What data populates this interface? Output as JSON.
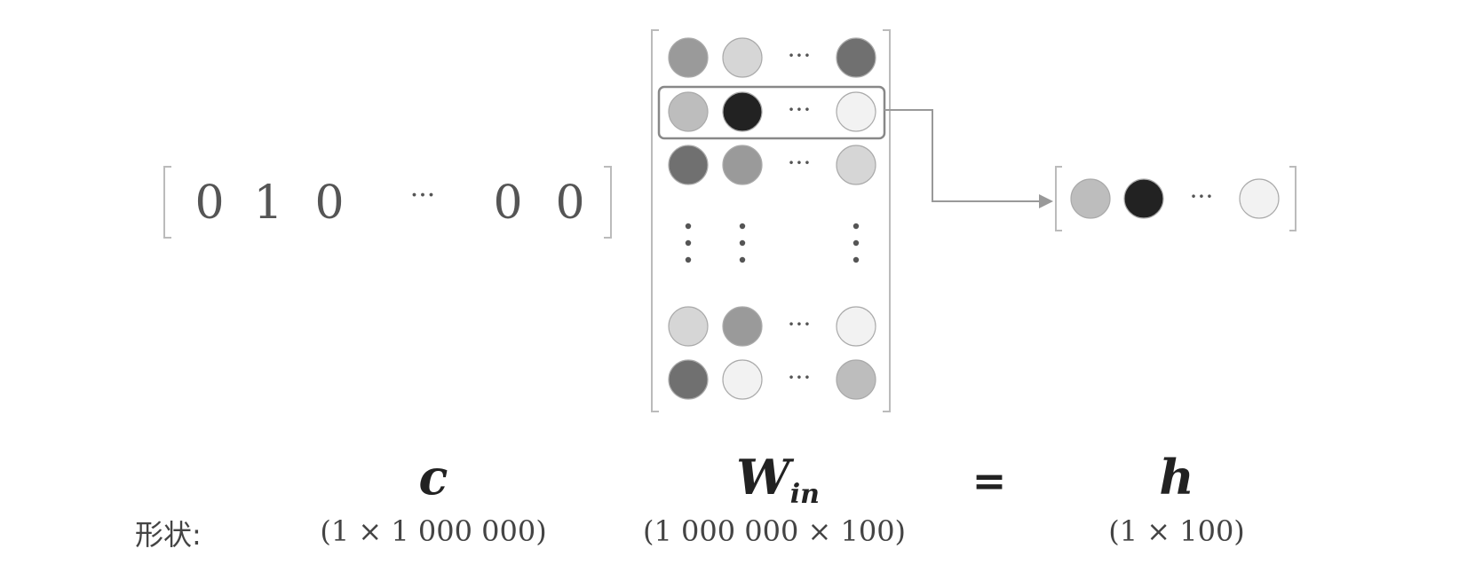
{
  "one_hot_vector": {
    "entries": [
      "0",
      "1",
      "0",
      "···",
      "0",
      "0"
    ]
  },
  "equation": {
    "c": "c",
    "w": "W",
    "w_sub": "in",
    "equals": "=",
    "h": "h"
  },
  "shapes": {
    "label": "形状:",
    "c": "(1 × 1 000 000)",
    "w": "(1 000 000 × 100)",
    "h": "(1 × 100)"
  },
  "matrix": {
    "dots_row": "···",
    "rows": [
      [
        "#9a9a9a",
        "#d6d6d6",
        "#707070"
      ],
      [
        "#bdbdbd",
        "#222222",
        "#f2f2f2"
      ],
      [
        "#707070",
        "#9a9a9a",
        "#d6d6d6"
      ],
      [
        "#d6d6d6",
        "#9a9a9a",
        "#f2f2f2"
      ],
      [
        "#707070",
        "#f2f2f2",
        "#bdbdbd"
      ]
    ],
    "highlighted_row": 1
  },
  "result_vector": {
    "colors": [
      "#bdbdbd",
      "#222222",
      "#f2f2f2"
    ],
    "dots": "···"
  },
  "colors": {
    "bracket": "#bbbbbb",
    "arrow": "#999999",
    "highlight_box": "#888888",
    "circle_stroke": "#aaaaaa"
  }
}
